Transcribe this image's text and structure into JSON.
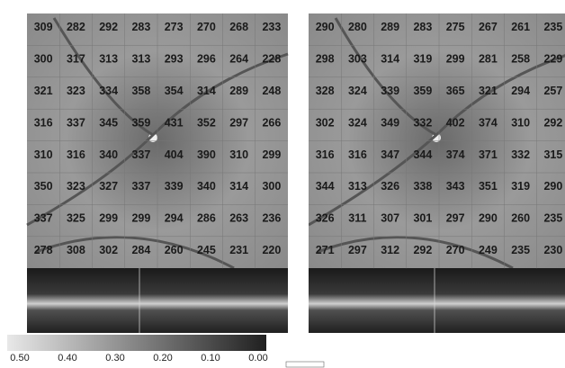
{
  "left_grid": {
    "rows": [
      [
        309,
        282,
        292,
        283,
        273,
        270,
        268,
        233
      ],
      [
        300,
        317,
        313,
        313,
        293,
        296,
        264,
        228
      ],
      [
        321,
        323,
        334,
        358,
        354,
        314,
        289,
        248
      ],
      [
        316,
        337,
        345,
        359,
        431,
        352,
        297,
        266
      ],
      [
        310,
        316,
        340,
        337,
        404,
        390,
        310,
        299
      ],
      [
        350,
        323,
        327,
        337,
        339,
        340,
        314,
        300
      ],
      [
        337,
        325,
        299,
        299,
        294,
        286,
        263,
        236
      ],
      [
        278,
        308,
        302,
        284,
        260,
        245,
        231,
        220
      ]
    ]
  },
  "right_grid": {
    "rows": [
      [
        290,
        280,
        289,
        283,
        275,
        267,
        261,
        235
      ],
      [
        298,
        303,
        314,
        319,
        299,
        281,
        258,
        229
      ],
      [
        328,
        324,
        339,
        359,
        365,
        321,
        294,
        257
      ],
      [
        302,
        324,
        349,
        332,
        402,
        374,
        310,
        292
      ],
      [
        316,
        316,
        347,
        344,
        374,
        371,
        332,
        315
      ],
      [
        344,
        313,
        326,
        338,
        343,
        351,
        319,
        290
      ],
      [
        326,
        311,
        307,
        301,
        297,
        290,
        260,
        235
      ],
      [
        271,
        297,
        312,
        292,
        270,
        249,
        235,
        230
      ]
    ]
  },
  "colorbar": {
    "labels": [
      "0.50",
      "0.40",
      "0.30",
      "0.20",
      "0.10",
      "0.00"
    ]
  }
}
